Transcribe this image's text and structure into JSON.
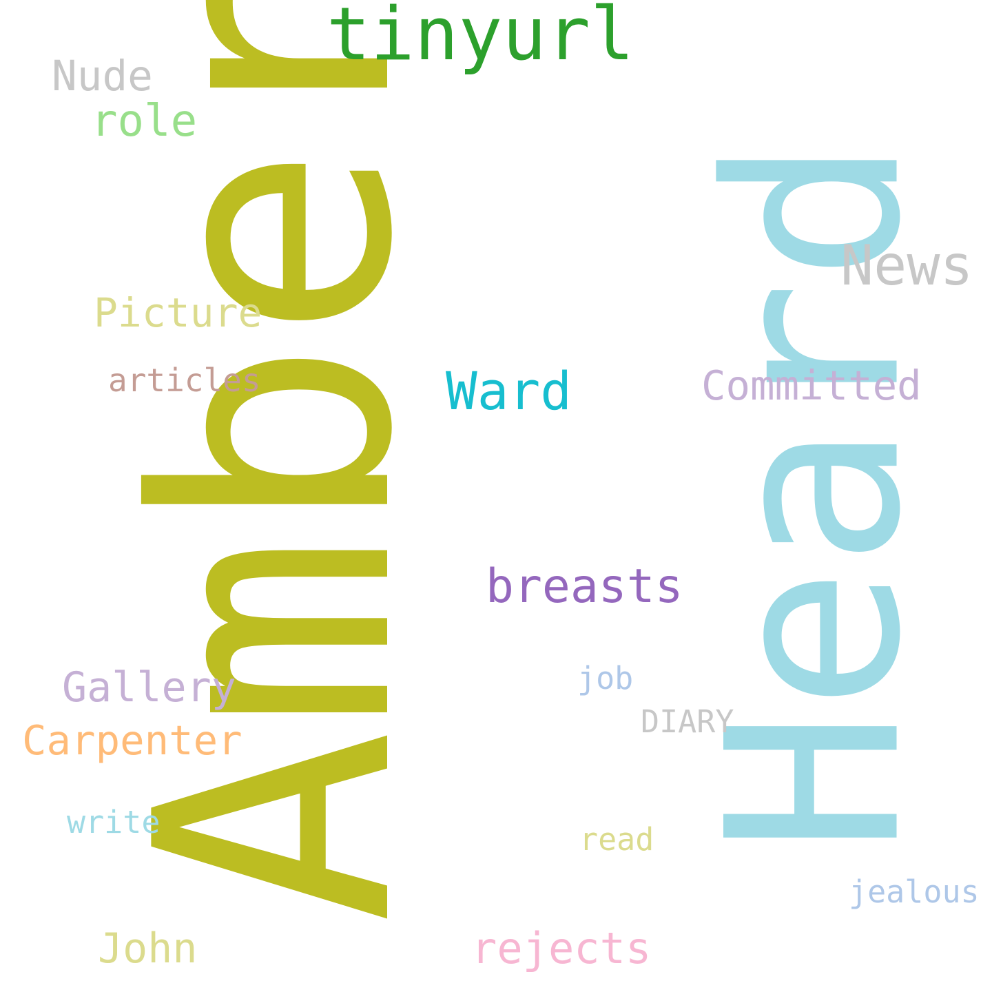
{
  "words": [
    {
      "key": "amber",
      "text": "Amber",
      "color": "#bcbd22"
    },
    {
      "key": "heard",
      "text": "Heard",
      "color": "#9edae5"
    },
    {
      "key": "tinyurl",
      "text": "tinyurl",
      "color": "#2ca02c"
    },
    {
      "key": "nude",
      "text": "Nude",
      "color": "#c7c7c7"
    },
    {
      "key": "role",
      "text": "role",
      "color": "#98df8a"
    },
    {
      "key": "news",
      "text": "News",
      "color": "#c7c7c7"
    },
    {
      "key": "picture",
      "text": "Picture",
      "color": "#dbdb8d"
    },
    {
      "key": "articles",
      "text": "articles",
      "color": "#c49c94"
    },
    {
      "key": "ward",
      "text": "Ward",
      "color": "#17becf"
    },
    {
      "key": "committed",
      "text": "Committed",
      "color": "#c5b0d5"
    },
    {
      "key": "breasts",
      "text": "breasts",
      "color": "#9467bd"
    },
    {
      "key": "job",
      "text": "job",
      "color": "#aec7e8"
    },
    {
      "key": "gallery",
      "text": "Gallery",
      "color": "#c5b0d5"
    },
    {
      "key": "diary",
      "text": "DIARY",
      "color": "#c7c7c7"
    },
    {
      "key": "carpenter",
      "text": "Carpenter",
      "color": "#ffbb78"
    },
    {
      "key": "write",
      "text": "write",
      "color": "#9edae5"
    },
    {
      "key": "read",
      "text": "read",
      "color": "#dbdb8d"
    },
    {
      "key": "jealous",
      "text": "jealous",
      "color": "#aec7e8"
    },
    {
      "key": "john",
      "text": "John",
      "color": "#dbdb8d"
    },
    {
      "key": "rejects",
      "text": "rejects",
      "color": "#f7b6d2"
    }
  ]
}
